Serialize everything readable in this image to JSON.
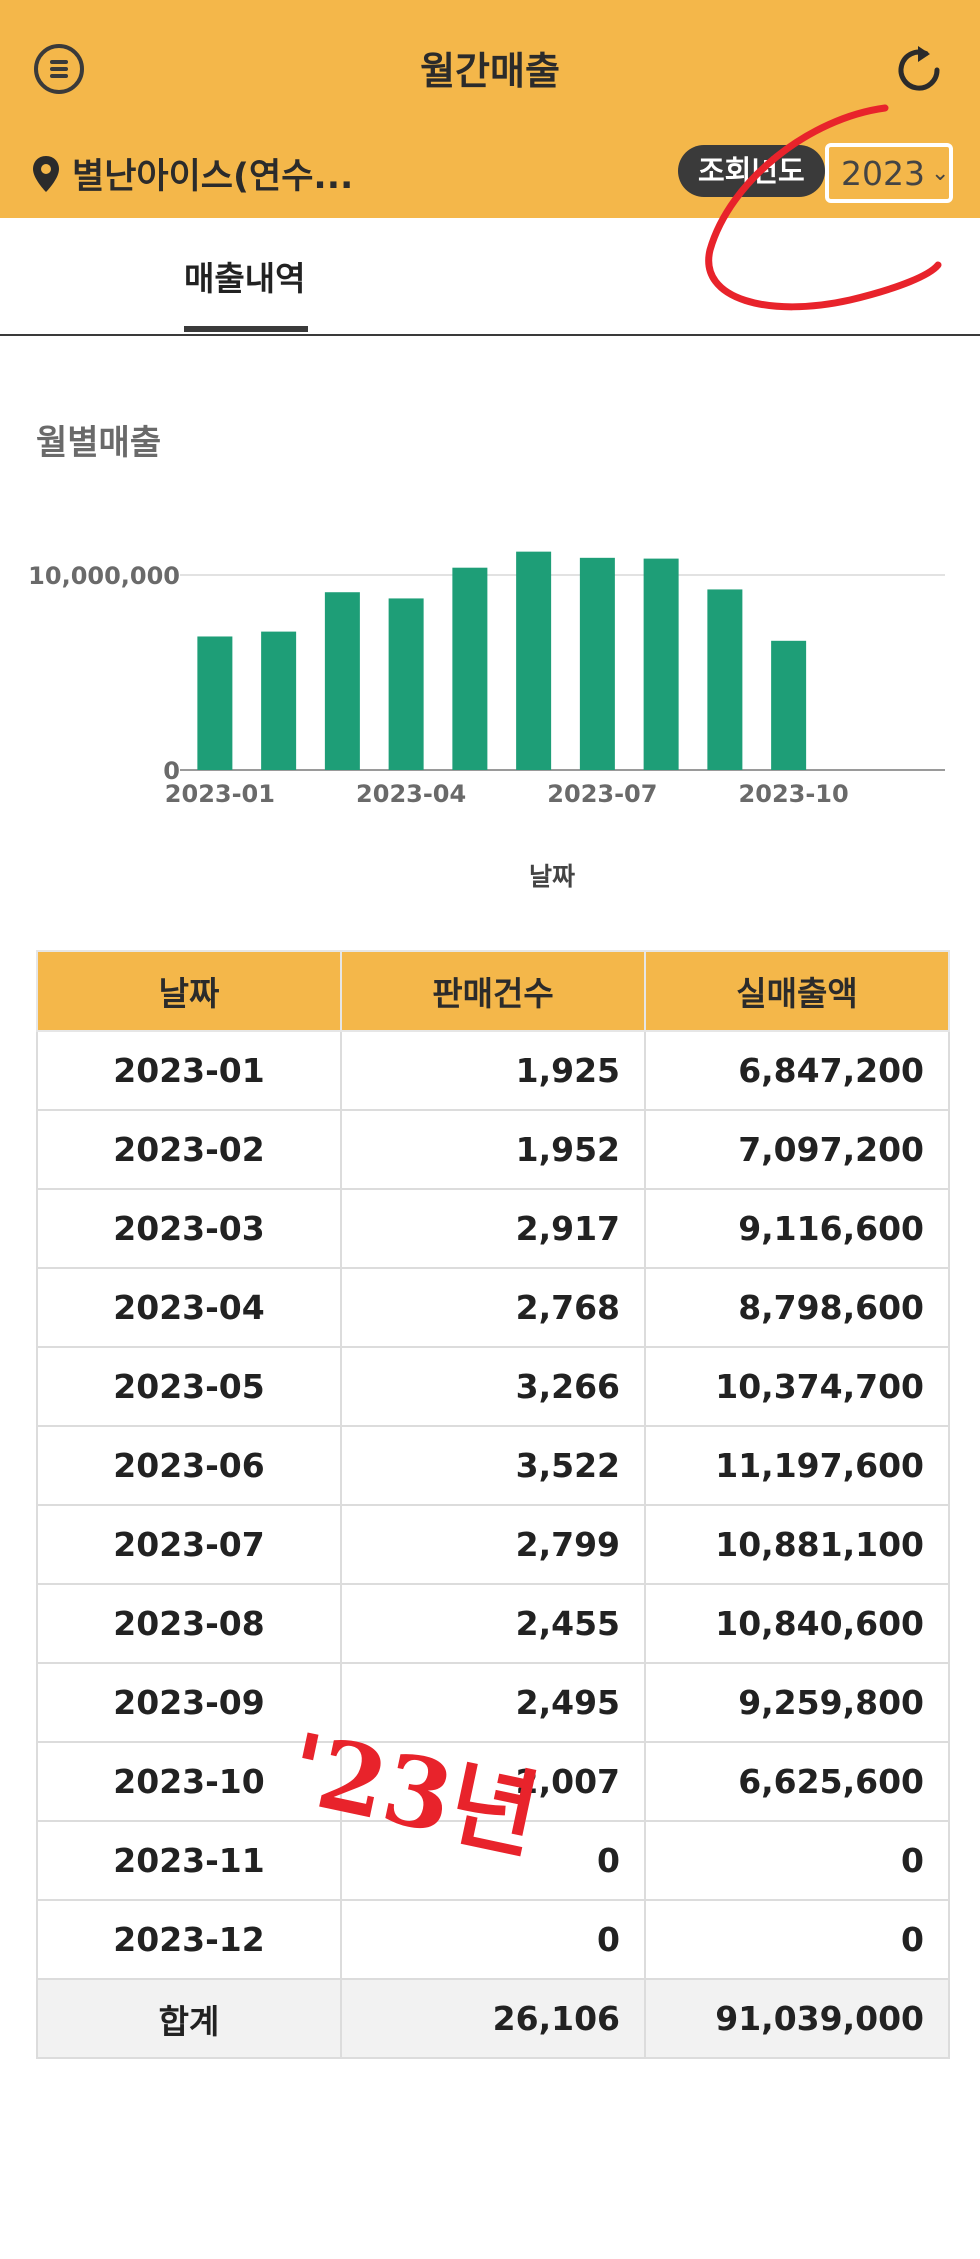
{
  "header": {
    "title": "월간매출",
    "store_name": "별난아이스(연수...",
    "year_label": "조회년도",
    "year_value": "2023",
    "background_color": "#F4B74A"
  },
  "tabs": [
    {
      "label": "매출내역",
      "active": true
    }
  ],
  "section": {
    "title": "월별매출"
  },
  "chart_data": {
    "type": "bar",
    "title": "",
    "xlabel": "날짜",
    "ylabel": "",
    "categories": [
      "2023-01",
      "2023-02",
      "2023-03",
      "2023-04",
      "2023-05",
      "2023-06",
      "2023-07",
      "2023-08",
      "2023-09",
      "2023-10",
      "2023-11",
      "2023-12"
    ],
    "values": [
      6847200,
      7097200,
      9116600,
      8798600,
      10374700,
      11197600,
      10881100,
      10840600,
      9259800,
      6625600,
      0,
      0
    ],
    "xticks": [
      "2023-01",
      "2023-04",
      "2023-07",
      "2023-10"
    ],
    "yticks": [
      {
        "value": 0,
        "label": "0"
      },
      {
        "value": 10000000,
        "label": "10,000,000"
      }
    ],
    "ylim": [
      0,
      12000000
    ],
    "color": "#1E9E77"
  },
  "table": {
    "headers": [
      "날짜",
      "판매건수",
      "실매출액"
    ],
    "rows": [
      [
        "2023-01",
        "1,925",
        "6,847,200"
      ],
      [
        "2023-02",
        "1,952",
        "7,097,200"
      ],
      [
        "2023-03",
        "2,917",
        "9,116,600"
      ],
      [
        "2023-04",
        "2,768",
        "8,798,600"
      ],
      [
        "2023-05",
        "3,266",
        "10,374,700"
      ],
      [
        "2023-06",
        "3,522",
        "11,197,600"
      ],
      [
        "2023-07",
        "2,799",
        "10,881,100"
      ],
      [
        "2023-08",
        "2,455",
        "10,840,600"
      ],
      [
        "2023-09",
        "2,495",
        "9,259,800"
      ],
      [
        "2023-10",
        "2,007",
        "6,625,600"
      ],
      [
        "2023-11",
        "0",
        "0"
      ],
      [
        "2023-12",
        "0",
        "0"
      ]
    ],
    "total": [
      "합계",
      "26,106",
      "91,039,000"
    ]
  },
  "annotations": {
    "handwritten_text": "'23년",
    "color": "#E8232B"
  }
}
